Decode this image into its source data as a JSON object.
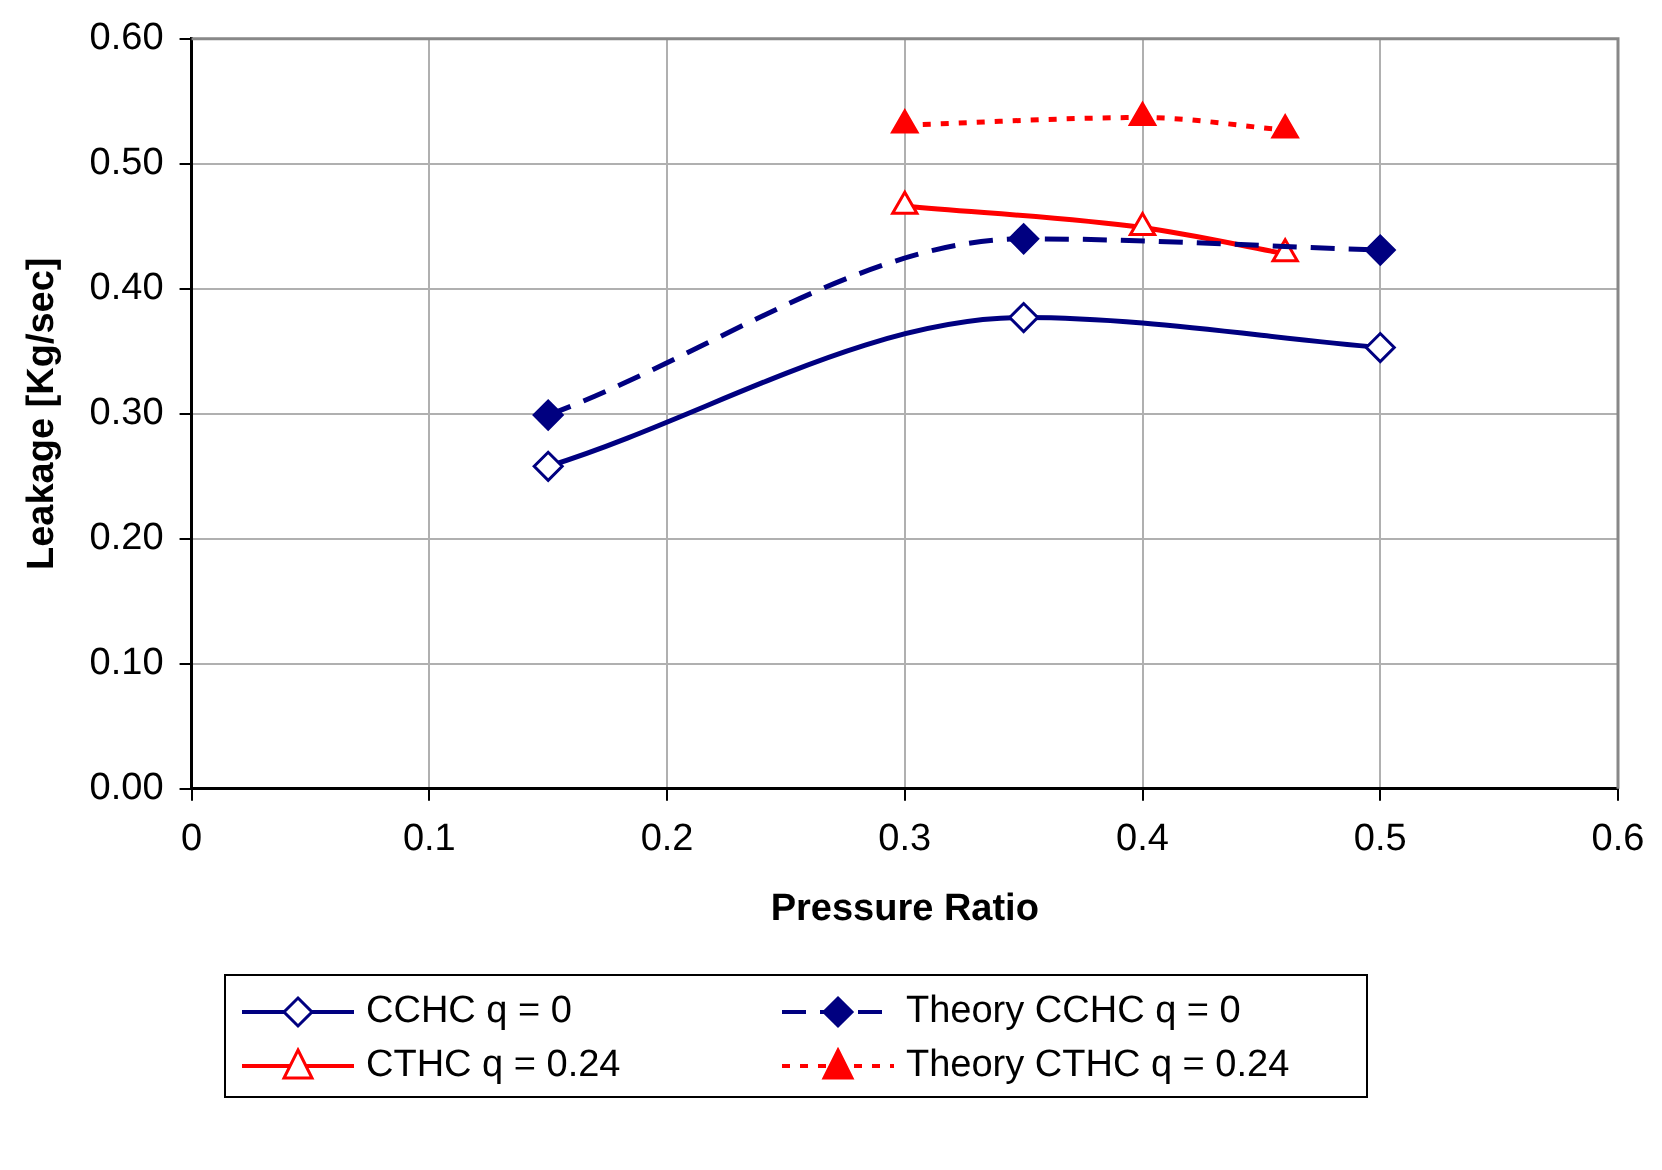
{
  "chart_data": {
    "type": "line",
    "xlabel": "Pressure Ratio",
    "ylabel": "Leakage [Kg/sec]",
    "xlim": [
      0,
      0.6
    ],
    "xticks": [
      0,
      0.1,
      0.2,
      0.3,
      0.4,
      0.5,
      0.6
    ],
    "ylim": [
      0,
      0.6
    ],
    "yticks": [
      {
        "value": 0,
        "label": "0.00"
      },
      {
        "value": 0.1,
        "label": "0.10"
      },
      {
        "value": 0.2,
        "label": "0.20"
      },
      {
        "value": 0.3,
        "label": "0.30"
      },
      {
        "value": 0.4,
        "label": "0.40"
      },
      {
        "value": 0.5,
        "label": "0.50"
      },
      {
        "value": 0.6,
        "label": "0.60"
      }
    ],
    "grid": true,
    "legend": "bottom",
    "series": [
      {
        "name": "CCHC q = 0",
        "color": "#000080",
        "x": [
          0.15,
          0.35,
          0.5
        ],
        "values": [
          0.258,
          0.377,
          0.353
        ],
        "marker": "diamond",
        "line_style": "solid"
      },
      {
        "name": "Theory CCHC q = 0",
        "color": "#000080",
        "x": [
          0.15,
          0.35,
          0.5
        ],
        "values": [
          0.299,
          0.44,
          0.431
        ],
        "marker": "diamond",
        "line_style": "dashed"
      },
      {
        "name": "CTHC q = 0.24",
        "color": "#ff0000",
        "x": [
          0.3,
          0.4,
          0.46
        ],
        "values": [
          0.466,
          0.449,
          0.428
        ],
        "marker": "triangle",
        "line_style": "solid"
      },
      {
        "name": "Theory CTHC q = 0.24",
        "color": "#ff0000",
        "x": [
          0.3,
          0.4,
          0.46
        ],
        "values": [
          0.531,
          0.537,
          0.527
        ],
        "marker": "triangle",
        "line_style": "dotted"
      }
    ]
  }
}
